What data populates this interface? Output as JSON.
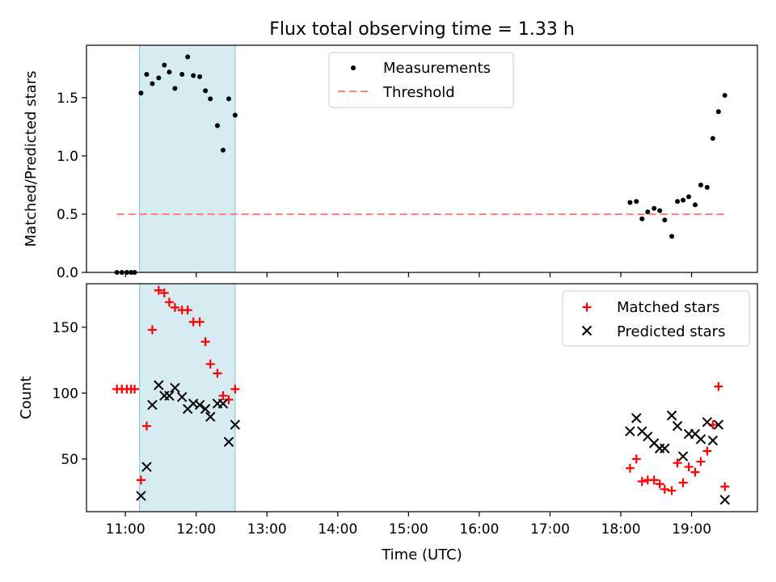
{
  "chart_data": [
    {
      "type": "scatter",
      "title": "Flux total observing time = 1.33 h",
      "xlabel": "",
      "ylabel": "Matched/Predicted stars",
      "ylim": [
        0,
        1.95
      ],
      "yticks": [
        0.0,
        0.5,
        1.0,
        1.5
      ],
      "ytick_labels": [
        "0.0",
        "0.5",
        "1.0",
        "1.5"
      ],
      "xlim_hours": [
        10.45,
        19.93
      ],
      "highlight_span_hours": [
        11.2,
        12.55
      ],
      "legend_position": "top-center",
      "series": [
        {
          "name": "Measurements",
          "kind": "points",
          "color": "#000000",
          "x_hours": [
            10.88,
            10.95,
            11.02,
            11.08,
            11.13,
            11.22,
            11.3,
            11.38,
            11.47,
            11.55,
            11.62,
            11.7,
            11.8,
            11.88,
            11.96,
            12.05,
            12.13,
            12.2,
            12.3,
            12.38,
            12.46,
            12.55,
            18.13,
            18.22,
            18.3,
            18.38,
            18.47,
            18.55,
            18.62,
            18.72,
            18.8,
            18.88,
            18.96,
            19.05,
            19.13,
            19.22,
            19.3,
            19.38,
            19.47
          ],
          "y": [
            0.0,
            0.0,
            0.0,
            0.0,
            0.0,
            1.54,
            1.7,
            1.62,
            1.67,
            1.78,
            1.72,
            1.58,
            1.7,
            1.85,
            1.69,
            1.68,
            1.56,
            1.49,
            1.26,
            1.05,
            1.49,
            1.35,
            0.6,
            0.61,
            0.46,
            0.52,
            0.55,
            0.53,
            0.45,
            0.31,
            0.61,
            0.62,
            0.65,
            0.58,
            0.75,
            0.73,
            1.15,
            1.38,
            1.52
          ]
        },
        {
          "name": "Threshold",
          "kind": "dashed-line",
          "color": "#ff7f7f",
          "x_hours": [
            10.88,
            19.47
          ],
          "y": [
            0.5,
            0.5
          ]
        }
      ]
    },
    {
      "type": "scatter",
      "title": "",
      "xlabel": "Time (UTC)",
      "ylabel": "Count",
      "ylim": [
        10,
        183
      ],
      "yticks": [
        50,
        100,
        150
      ],
      "ytick_labels": [
        "50",
        "100",
        "150"
      ],
      "xlim_hours": [
        10.45,
        19.93
      ],
      "xticks_hours": [
        11,
        12,
        13,
        14,
        15,
        16,
        17,
        18,
        19
      ],
      "xtick_labels": [
        "11:00",
        "12:00",
        "13:00",
        "14:00",
        "15:00",
        "16:00",
        "17:00",
        "18:00",
        "19:00"
      ],
      "highlight_span_hours": [
        11.2,
        12.55
      ],
      "legend_position": "top-right",
      "series": [
        {
          "name": "Matched stars",
          "marker": "plus",
          "color": "#ff0000",
          "x_hours": [
            10.88,
            10.95,
            11.02,
            11.08,
            11.13,
            11.22,
            11.3,
            11.38,
            11.47,
            11.55,
            11.62,
            11.7,
            11.8,
            11.88,
            11.96,
            12.05,
            12.13,
            12.2,
            12.3,
            12.38,
            12.46,
            12.55,
            18.13,
            18.22,
            18.3,
            18.38,
            18.47,
            18.55,
            18.62,
            18.72,
            18.8,
            18.88,
            18.96,
            19.05,
            19.13,
            19.22,
            19.3,
            19.38,
            19.47
          ],
          "y": [
            103,
            103,
            103,
            103,
            103,
            34,
            75,
            148,
            178,
            176,
            169,
            165,
            163,
            163,
            154,
            154,
            139,
            122,
            115,
            98,
            95,
            103,
            43,
            50,
            33,
            34,
            34,
            31,
            27,
            26,
            47,
            32,
            44,
            40,
            48,
            56,
            76,
            105,
            29
          ]
        },
        {
          "name": "Predicted stars",
          "marker": "x",
          "color": "#000000",
          "x_hours": [
            11.22,
            11.3,
            11.38,
            11.47,
            11.55,
            11.62,
            11.7,
            11.8,
            11.88,
            11.96,
            12.05,
            12.13,
            12.2,
            12.3,
            12.38,
            12.46,
            12.55,
            18.13,
            18.22,
            18.3,
            18.38,
            18.47,
            18.55,
            18.62,
            18.72,
            18.8,
            18.88,
            18.96,
            19.05,
            19.13,
            19.22,
            19.3,
            19.38,
            19.47
          ],
          "y": [
            22,
            44,
            91,
            106,
            98,
            98,
            104,
            97,
            88,
            92,
            91,
            88,
            82,
            92,
            92,
            63,
            76,
            71,
            81,
            71,
            67,
            62,
            58,
            58,
            83,
            75,
            52,
            69,
            69,
            65,
            78,
            64,
            76,
            19
          ]
        }
      ]
    }
  ]
}
